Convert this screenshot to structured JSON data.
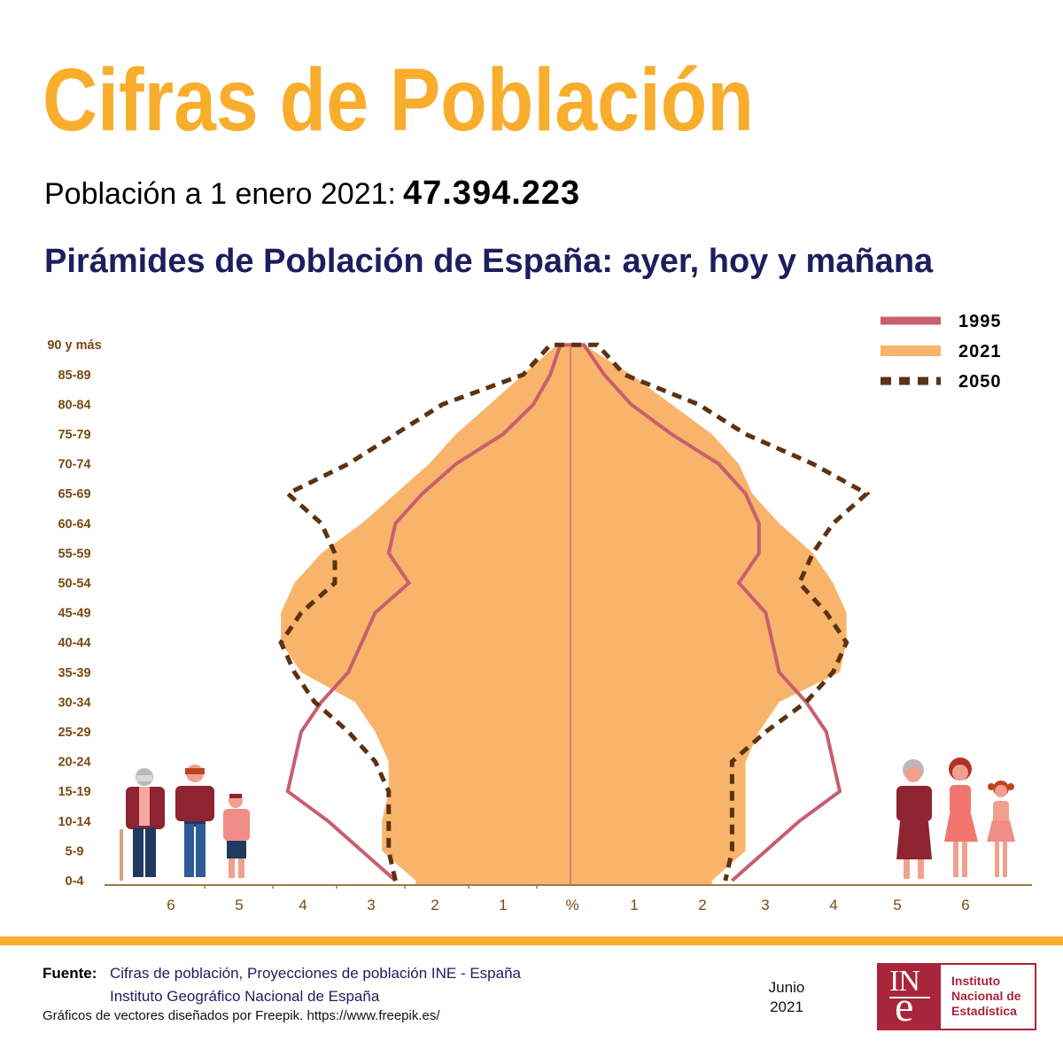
{
  "header": {
    "title": "Cifras de Población",
    "population_label": "Población a 1 enero 2021:",
    "population_value": "47.394.223",
    "subtitle": "Pirámides de Población de España: ayer, hoy y mañana"
  },
  "colors": {
    "title": "#F8AE2C",
    "subtitle": "#1F1D5E",
    "fill_2021": "#F9B46C",
    "line_1995": "#C85E6E",
    "line_2050": "#5C3212",
    "axis": "#9A7A4A",
    "tick_text": "#7A4A12"
  },
  "chart_data": {
    "type": "population-pyramid",
    "age_groups": [
      "0-4",
      "5-9",
      "10-14",
      "15-19",
      "20-24",
      "25-29",
      "30-34",
      "35-39",
      "40-44",
      "45-49",
      "50-54",
      "55-59",
      "60-64",
      "65-69",
      "70-74",
      "75-79",
      "80-84",
      "85-89",
      "90 y más"
    ],
    "x_ticks_left": [
      "6",
      "5",
      "4",
      "3",
      "2",
      "1"
    ],
    "x_center_label": "%",
    "x_ticks_right": [
      "1",
      "2",
      "3",
      "4",
      "5",
      "6"
    ],
    "xlim": [
      -7,
      7
    ],
    "legend_position": "top-right",
    "series": [
      {
        "name": "1995",
        "style": "line",
        "left": [
          2.6,
          3.1,
          3.6,
          4.2,
          4.1,
          4.0,
          3.7,
          3.3,
          3.1,
          2.9,
          2.4,
          2.7,
          2.6,
          2.2,
          1.7,
          1.0,
          0.55,
          0.3,
          0.15
        ],
        "right": [
          2.4,
          2.9,
          3.4,
          4.0,
          3.9,
          3.8,
          3.5,
          3.1,
          3.0,
          2.9,
          2.5,
          2.8,
          2.8,
          2.6,
          2.2,
          1.5,
          0.9,
          0.5,
          0.2
        ]
      },
      {
        "name": "2021",
        "style": "area",
        "left": [
          2.3,
          2.8,
          2.8,
          2.7,
          2.7,
          2.9,
          3.2,
          4.0,
          4.3,
          4.3,
          4.1,
          3.7,
          3.1,
          2.6,
          2.1,
          1.7,
          1.2,
          0.7,
          0.2
        ],
        "right": [
          2.1,
          2.6,
          2.6,
          2.6,
          2.6,
          2.8,
          3.1,
          4.0,
          4.1,
          4.1,
          3.9,
          3.6,
          3.1,
          2.7,
          2.5,
          2.1,
          1.5,
          0.9,
          0.2
        ]
      },
      {
        "name": "2050",
        "style": "dotted",
        "left": [
          2.6,
          2.7,
          2.7,
          2.7,
          2.9,
          3.3,
          3.8,
          4.1,
          4.3,
          4.0,
          3.5,
          3.5,
          3.7,
          4.2,
          3.3,
          2.6,
          1.9,
          0.7,
          0.3
        ],
        "right": [
          2.3,
          2.4,
          2.4,
          2.4,
          2.4,
          2.9,
          3.5,
          3.9,
          4.1,
          3.8,
          3.4,
          3.6,
          3.9,
          4.4,
          3.6,
          2.6,
          1.9,
          0.8,
          0.4
        ]
      }
    ]
  },
  "footer": {
    "source_label": "Fuente:",
    "source_line1": "Cifras de población, Proyecciones de población INE - España",
    "source_line2": "Instituto Geográfico Nacional de España",
    "credit": "Gráficos de vectores diseñados por Freepik.  https://www.freepik.es/",
    "date_month": "Junio",
    "date_year": "2021",
    "logo_mark_top": "IN",
    "logo_mark_bottom": "e",
    "logo_line1": "Instituto",
    "logo_line2": "Nacional de",
    "logo_line3": "Estadística"
  }
}
